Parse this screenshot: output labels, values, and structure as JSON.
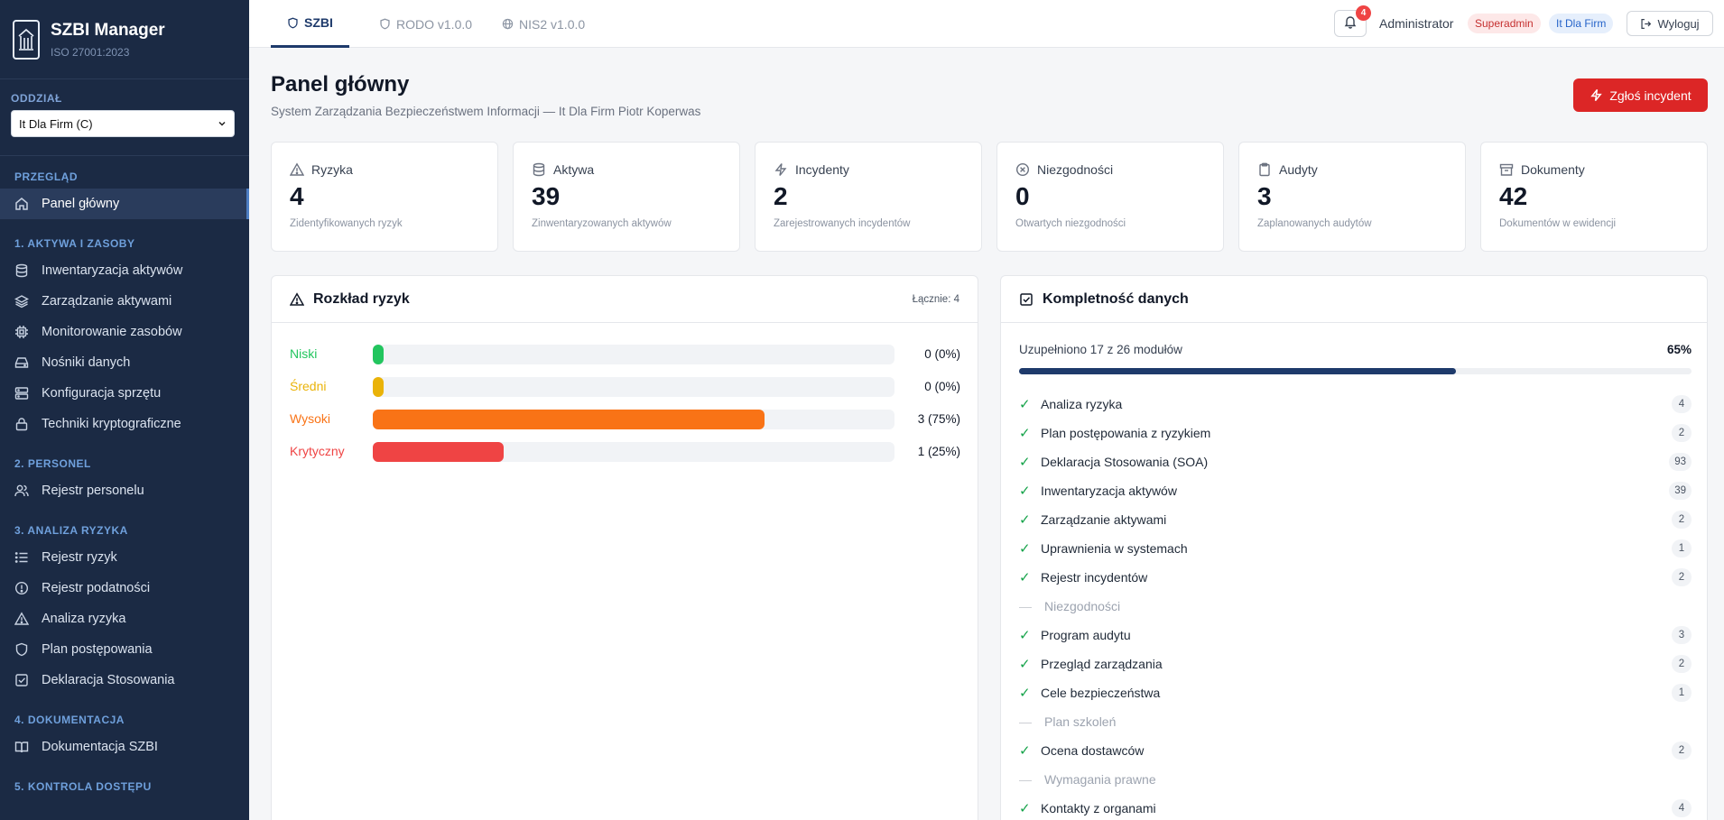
{
  "brand": {
    "title": "SZBI Manager",
    "subtitle": "ISO 27001:2023"
  },
  "branch": {
    "label": "ODDZIAŁ",
    "selected": "It Dla Firm (C)"
  },
  "sidebar": {
    "sections": [
      {
        "title": "PRZEGLĄD",
        "items": [
          {
            "label": "Panel główny",
            "icon": "home-icon",
            "active": true
          }
        ]
      },
      {
        "title": "1. AKTYWA I ZASOBY",
        "items": [
          {
            "label": "Inwentaryzacja aktywów",
            "icon": "database-icon"
          },
          {
            "label": "Zarządzanie aktywami",
            "icon": "layers-icon"
          },
          {
            "label": "Monitorowanie zasobów",
            "icon": "cpu-icon"
          },
          {
            "label": "Nośniki danych",
            "icon": "hard-drive-icon"
          },
          {
            "label": "Konfiguracja sprzętu",
            "icon": "server-icon"
          },
          {
            "label": "Techniki kryptograficzne",
            "icon": "lock-icon"
          }
        ]
      },
      {
        "title": "2. PERSONEL",
        "items": [
          {
            "label": "Rejestr personelu",
            "icon": "users-icon"
          }
        ]
      },
      {
        "title": "3. ANALIZA RYZYKA",
        "items": [
          {
            "label": "Rejestr ryzyk",
            "icon": "list-icon"
          },
          {
            "label": "Rejestr podatności",
            "icon": "alert-circle-icon"
          },
          {
            "label": "Analiza ryzyka",
            "icon": "warning-triangle-icon"
          },
          {
            "label": "Plan postępowania",
            "icon": "shield-icon"
          },
          {
            "label": "Deklaracja Stosowania",
            "icon": "check-square-icon"
          }
        ]
      },
      {
        "title": "4. DOKUMENTACJA",
        "items": [
          {
            "label": "Dokumentacja SZBI",
            "icon": "book-icon"
          }
        ]
      },
      {
        "title": "5. KONTROLA DOSTĘPU",
        "items": []
      }
    ]
  },
  "tabs": [
    {
      "label": "SZBI",
      "icon": "shield-icon",
      "active": true
    },
    {
      "label": "RODO v1.0.0",
      "icon": "shield-icon"
    },
    {
      "label": "NIS2 v1.0.0",
      "icon": "globe-icon"
    }
  ],
  "header": {
    "notifications": "4",
    "user": "Administrator",
    "role_badge": "Superadmin",
    "org_badge": "It Dla Firm",
    "logout": "Wyloguj"
  },
  "page": {
    "title": "Panel główny",
    "subtitle": "System Zarządzania Bezpieczeństwem Informacji — It Dla Firm Piotr Koperwas",
    "incident_button": "Zgłoś incydent"
  },
  "stats": [
    {
      "label": "Ryzyka",
      "value": "4",
      "desc": "Zidentyfikowanych ryzyk",
      "icon": "warning-triangle-icon"
    },
    {
      "label": "Aktywa",
      "value": "39",
      "desc": "Zinwentaryzowanych aktywów",
      "icon": "database-icon"
    },
    {
      "label": "Incydenty",
      "value": "2",
      "desc": "Zarejestrowanych incydentów",
      "icon": "zap-icon"
    },
    {
      "label": "Niezgodności",
      "value": "0",
      "desc": "Otwartych niezgodności",
      "icon": "x-circle-icon"
    },
    {
      "label": "Audyty",
      "value": "3",
      "desc": "Zaplanowanych audytów",
      "icon": "clipboard-icon"
    },
    {
      "label": "Dokumenty",
      "value": "42",
      "desc": "Dokumentów w ewidencji",
      "icon": "archive-icon"
    }
  ],
  "risk_panel": {
    "title": "Rozkład ryzyk",
    "total": "Łącznie: 4",
    "rows": [
      {
        "label": "Niski",
        "value": "0 (0%)",
        "fraction": 0.0,
        "color": "#22c55e"
      },
      {
        "label": "Średni",
        "value": "0 (0%)",
        "fraction": 0.0,
        "color": "#eab308"
      },
      {
        "label": "Wysoki",
        "value": "3 (75%)",
        "fraction": 0.75,
        "color": "#f97316"
      },
      {
        "label": "Krytyczny",
        "value": "1 (25%)",
        "fraction": 0.25,
        "color": "#ef4444"
      }
    ]
  },
  "completeness_panel": {
    "title": "Kompletność danych",
    "summary": "Uzupełniono 17 z 26 modułów",
    "percent": "65%",
    "fraction": 0.65,
    "items": [
      {
        "label": "Analiza ryzyka",
        "count": "4",
        "done": true
      },
      {
        "label": "Plan postępowania z ryzykiem",
        "count": "2",
        "done": true
      },
      {
        "label": "Deklaracja Stosowania (SOA)",
        "count": "93",
        "done": true
      },
      {
        "label": "Inwentaryzacja aktywów",
        "count": "39",
        "done": true
      },
      {
        "label": "Zarządzanie aktywami",
        "count": "2",
        "done": true
      },
      {
        "label": "Uprawnienia w systemach",
        "count": "1",
        "done": true
      },
      {
        "label": "Rejestr incydentów",
        "count": "2",
        "done": true
      },
      {
        "label": "Niezgodności",
        "count": "",
        "done": false
      },
      {
        "label": "Program audytu",
        "count": "3",
        "done": true
      },
      {
        "label": "Przegląd zarządzania",
        "count": "2",
        "done": true
      },
      {
        "label": "Cele bezpieczeństwa",
        "count": "1",
        "done": true
      },
      {
        "label": "Plan szkoleń",
        "count": "",
        "done": false
      },
      {
        "label": "Ocena dostawców",
        "count": "2",
        "done": true
      },
      {
        "label": "Wymagania prawne",
        "count": "",
        "done": false
      },
      {
        "label": "Kontakty z organami",
        "count": "4",
        "done": true
      }
    ]
  }
}
